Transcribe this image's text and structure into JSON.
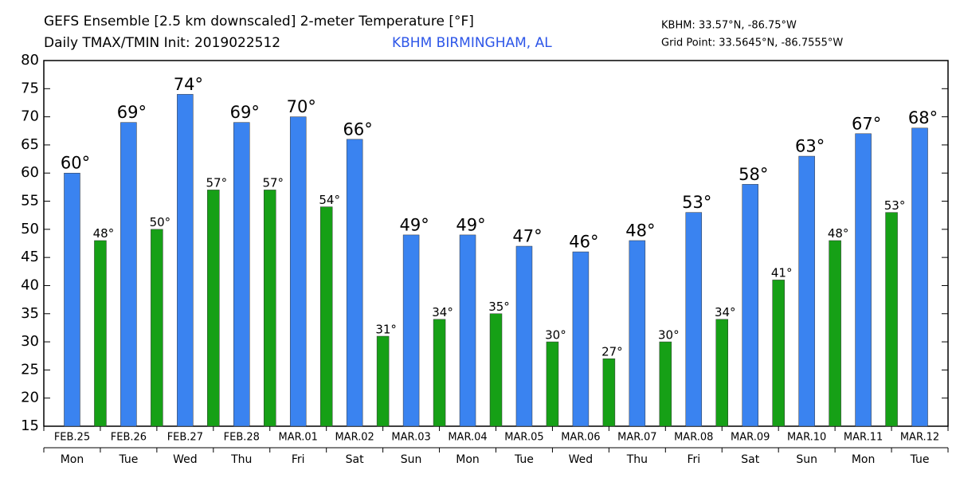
{
  "chart_data": {
    "type": "bar",
    "title": "GEFS Ensemble [2.5 km downscaled] 2-meter Temperature [°F]",
    "subtitle": "Daily TMAX/TMIN Init: 2019022512",
    "location": "KBHM BIRMINGHAM, AL",
    "station_info": [
      "KBHM: 33.57°N, -86.75°W",
      "Grid Point: 33.5645°N, -86.7555°W"
    ],
    "categories": [
      "FEB.25",
      "FEB.26",
      "FEB.27",
      "FEB.28",
      "MAR.01",
      "MAR.02",
      "MAR.03",
      "MAR.04",
      "MAR.05",
      "MAR.06",
      "MAR.07",
      "MAR.08",
      "MAR.09",
      "MAR.10",
      "MAR.11",
      "MAR.12"
    ],
    "weekdays": [
      "Mon",
      "Tue",
      "Wed",
      "Thu",
      "Fri",
      "Sat",
      "Sun",
      "Mon",
      "Tue",
      "Wed",
      "Thu",
      "Fri",
      "Sat",
      "Sun",
      "Mon",
      "Tue"
    ],
    "series": [
      {
        "color": "#3a83f0",
        "values": [
          60,
          69,
          74,
          69,
          70,
          66,
          49,
          49,
          47,
          46,
          48,
          53,
          58,
          63,
          67,
          68
        ],
        "value_labels": [
          "60°",
          "69°",
          "74°",
          "69°",
          "70°",
          "66°",
          "49°",
          "49°",
          "47°",
          "46°",
          "48°",
          "53°",
          "58°",
          "63°",
          "67°",
          "68°"
        ]
      },
      {
        "color": "#16a016",
        "values": [
          48,
          50,
          57,
          57,
          54,
          31,
          34,
          35,
          30,
          27,
          30,
          34,
          41,
          48,
          53,
          null
        ],
        "value_labels": [
          "48°",
          "50°",
          "57°",
          "57°",
          "54°",
          "31°",
          "34°",
          "35°",
          "30°",
          "27°",
          "30°",
          "34°",
          "41°",
          "48°",
          "53°",
          null
        ]
      }
    ],
    "ylim": [
      15,
      80
    ],
    "yticks": [
      15,
      20,
      25,
      30,
      35,
      40,
      45,
      50,
      55,
      60,
      65,
      70,
      75,
      80
    ],
    "grid": false
  }
}
